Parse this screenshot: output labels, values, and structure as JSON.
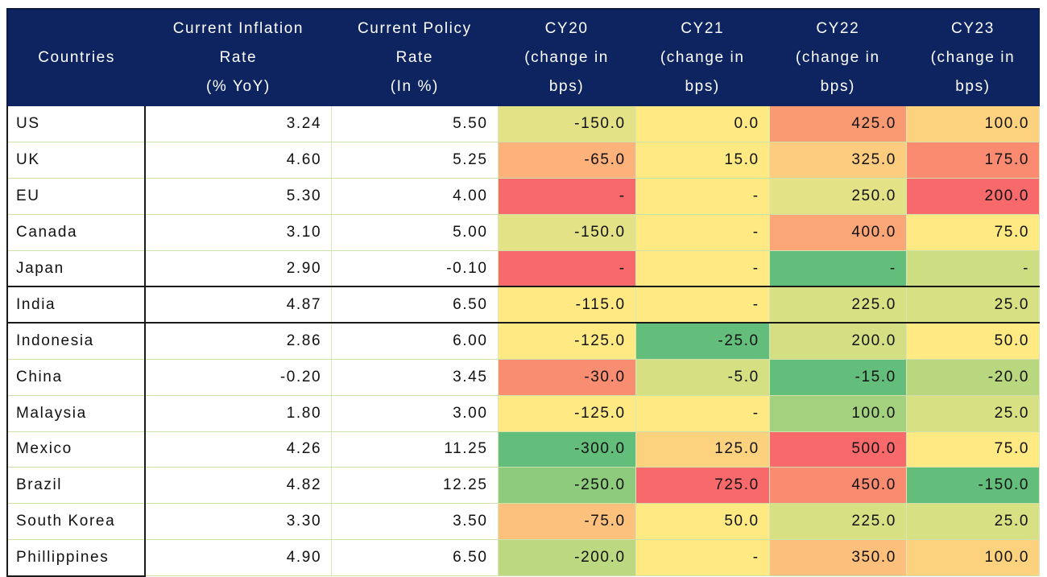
{
  "header": {
    "country": [
      "Countries"
    ],
    "inflation": [
      "Current Inflation",
      "Rate",
      "(% YoY)"
    ],
    "policy": [
      "Current Policy",
      "Rate",
      "(In %)"
    ],
    "cy20": [
      "CY20",
      "(change in",
      "bps)"
    ],
    "cy21": [
      "CY21",
      "(change in",
      "bps)"
    ],
    "cy22": [
      "CY22",
      "(change in",
      "bps)"
    ],
    "cy23": [
      "CY23",
      "(change in",
      "bps)"
    ]
  },
  "rows": [
    {
      "country": "US",
      "inflation": "3.24",
      "policy": "5.50",
      "cy20": "-150.0",
      "cy21": "0.0",
      "cy22": "425.0",
      "cy23": "100.0",
      "colors": [
        "#e3e286",
        "#fee983",
        "#fa9a73",
        "#fdd27e"
      ]
    },
    {
      "country": "UK",
      "inflation": "4.60",
      "policy": "5.25",
      "cy20": "-65.0",
      "cy21": "15.0",
      "cy22": "325.0",
      "cy23": "175.0",
      "colors": [
        "#fcb27a",
        "#fee983",
        "#fdcc7e",
        "#fa8b71"
      ]
    },
    {
      "country": "EU",
      "inflation": "5.30",
      "policy": "4.00",
      "cy20": "-",
      "cy21": "-",
      "cy22": "250.0",
      "cy23": "200.0",
      "colors": [
        "#f8696b",
        "#fee983",
        "#e3e286",
        "#f8696b"
      ]
    },
    {
      "country": "Canada",
      "inflation": "3.10",
      "policy": "5.00",
      "cy20": "-150.0",
      "cy21": "-",
      "cy22": "400.0",
      "cy23": "75.0",
      "colors": [
        "#e3e286",
        "#fee983",
        "#fba676",
        "#fee983"
      ]
    },
    {
      "country": "Japan",
      "inflation": "2.90",
      "policy": "-0.10",
      "cy20": "-",
      "cy21": "-",
      "cy22": "-",
      "cy23": "-",
      "colors": [
        "#f8696b",
        "#fee983",
        "#63be7b",
        "#cddd82"
      ]
    },
    {
      "country": "India",
      "inflation": "4.87",
      "policy": "6.50",
      "cy20": "-115.0",
      "cy21": "-",
      "cy22": "225.0",
      "cy23": "25.0",
      "colors": [
        "#fee983",
        "#fee983",
        "#d7e083",
        "#d7e083"
      ]
    },
    {
      "country": "Indonesia",
      "inflation": "2.86",
      "policy": "6.00",
      "cy20": "-125.0",
      "cy21": "-25.0",
      "cy22": "200.0",
      "cy23": "50.0",
      "colors": [
        "#fee983",
        "#63be7b",
        "#d3df82",
        "#fee983"
      ]
    },
    {
      "country": "China",
      "inflation": "-0.20",
      "policy": "3.45",
      "cy20": "-30.0",
      "cy21": "-5.0",
      "cy22": "-15.0",
      "cy23": "-20.0",
      "colors": [
        "#f98d71",
        "#d5e083",
        "#63be7b",
        "#b8d77f"
      ]
    },
    {
      "country": "Malaysia",
      "inflation": "1.80",
      "policy": "3.00",
      "cy20": "-125.0",
      "cy21": "-",
      "cy22": "100.0",
      "cy23": "25.0",
      "colors": [
        "#fee983",
        "#fee983",
        "#a3d17d",
        "#d7e083"
      ]
    },
    {
      "country": "Mexico",
      "inflation": "4.26",
      "policy": "11.25",
      "cy20": "-300.0",
      "cy21": "125.0",
      "cy22": "500.0",
      "cy23": "75.0",
      "colors": [
        "#63be7b",
        "#fdd27f",
        "#f8696b",
        "#fee983"
      ]
    },
    {
      "country": "Brazil",
      "inflation": "4.82",
      "policy": "12.25",
      "cy20": "-250.0",
      "cy21": "725.0",
      "cy22": "450.0",
      "cy23": "-150.0",
      "colors": [
        "#8fcb7c",
        "#f8696b",
        "#f98b71",
        "#63be7b"
      ]
    },
    {
      "country": "South Korea",
      "inflation": "3.30",
      "policy": "3.50",
      "cy20": "-75.0",
      "cy21": "50.0",
      "cy22": "225.0",
      "cy23": "25.0",
      "colors": [
        "#fcc17c",
        "#fee983",
        "#d7e083",
        "#d7e083"
      ]
    },
    {
      "country": "Phillippines",
      "inflation": "4.90",
      "policy": "6.50",
      "cy20": "-200.0",
      "cy21": "-",
      "cy22": "350.0",
      "cy23": "100.0",
      "colors": [
        "#bcd880",
        "#fee983",
        "#fcbf7c",
        "#fdd27e"
      ]
    }
  ]
}
